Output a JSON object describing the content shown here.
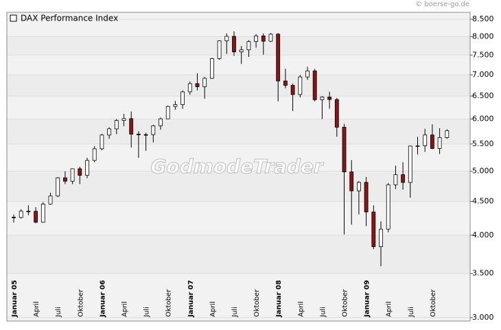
{
  "source": "© boerse-go.de",
  "logo": "GodmodeTrader",
  "chart_data": {
    "type": "candlestick",
    "log_scale": true,
    "grid": true,
    "up_color": "#ffffff",
    "down_color": "#8b1414",
    "ylim": [
      3000,
      8500
    ],
    "yticks": [
      {
        "value": 3000,
        "label": "3.000"
      },
      {
        "value": 3500,
        "label": "3.500"
      },
      {
        "value": 4000,
        "label": "4.000"
      },
      {
        "value": 4500,
        "label": "4.500"
      },
      {
        "value": 5000,
        "label": "5.000"
      },
      {
        "value": 5500,
        "label": "5.500"
      },
      {
        "value": 6000,
        "label": "6.000"
      },
      {
        "value": 6500,
        "label": "6.500"
      },
      {
        "value": 7000,
        "label": "7.000"
      },
      {
        "value": 7500,
        "label": "7.500"
      },
      {
        "value": 8000,
        "label": "8.000"
      },
      {
        "value": 8500,
        "label": "8.500"
      }
    ],
    "categories": [
      "Januar 05",
      null,
      null,
      "April",
      null,
      null,
      "Juli",
      null,
      null,
      "Oktober",
      null,
      null,
      "Januar 06",
      null,
      null,
      "April",
      null,
      null,
      "Juli",
      null,
      null,
      "Oktober",
      null,
      null,
      "Januar 07",
      null,
      null,
      "April",
      null,
      null,
      "Juli",
      null,
      null,
      "Oktober",
      null,
      null,
      "Januar 08",
      null,
      null,
      "April",
      null,
      null,
      "Juli",
      null,
      null,
      "Oktober",
      null,
      null,
      "Januar 09",
      null,
      null,
      "April",
      null,
      null,
      "Juli",
      null,
      null,
      "Oktober",
      null,
      null
    ],
    "series": [
      {
        "name": "DAX Performance Index",
        "open": [
          4260,
          4255,
          4350,
          4349,
          4185,
          4460,
          4586,
          4887,
          4829,
          5044,
          4929,
          5193,
          5408,
          5674,
          5797,
          5970,
          6009,
          5692,
          5683,
          5682,
          5860,
          6004,
          6269,
          6309,
          6597,
          6789,
          6715,
          6917,
          7409,
          7883,
          8007,
          7584,
          7638,
          7862,
          8019,
          7871,
          8067,
          6852,
          6748,
          6535,
          6949,
          7097,
          6418,
          6480,
          6422,
          5831,
          4988,
          4670,
          4810,
          4338,
          3843,
          4085,
          4770,
          4941,
          4809,
          5460,
          5465,
          5675,
          5414,
          5625
        ],
        "high": [
          4300,
          4380,
          4440,
          4410,
          4490,
          4640,
          4900,
          5000,
          5050,
          5080,
          5240,
          5460,
          5700,
          5830,
          6000,
          6110,
          6160,
          5750,
          5720,
          5880,
          6030,
          6290,
          6390,
          6630,
          6840,
          7040,
          6950,
          7430,
          7900,
          8090,
          8150,
          7740,
          7900,
          8070,
          8090,
          8100,
          8100,
          7150,
          6790,
          7000,
          7200,
          7150,
          6500,
          6600,
          6460,
          5900,
          5200,
          4830,
          4900,
          4440,
          4200,
          4800,
          5100,
          5160,
          5470,
          5640,
          5800,
          5890,
          5810,
          5790
        ],
        "low": [
          4180,
          4240,
          4290,
          4170,
          4180,
          4450,
          4570,
          4780,
          4780,
          4780,
          4880,
          5160,
          5380,
          5600,
          5690,
          5850,
          5430,
          5240,
          5370,
          5530,
          5780,
          6000,
          6200,
          6220,
          6530,
          6630,
          6440,
          6900,
          7380,
          7530,
          7480,
          7270,
          7450,
          7700,
          7510,
          7850,
          6380,
          6680,
          6170,
          6470,
          6880,
          6380,
          6000,
          6220,
          5640,
          4010,
          4150,
          4300,
          4130,
          3810,
          3590,
          4040,
          4700,
          4690,
          4560,
          5300,
          5350,
          5400,
          5310,
          5600
        ],
        "close": [
          4255,
          4350,
          4349,
          4185,
          4460,
          4586,
          4887,
          4829,
          5044,
          4929,
          5193,
          5408,
          5674,
          5797,
          5970,
          6009,
          5692,
          5683,
          5682,
          5860,
          6004,
          6269,
          6309,
          6597,
          6789,
          6715,
          6917,
          7409,
          7883,
          8007,
          7584,
          7638,
          7862,
          8019,
          7871,
          8067,
          6852,
          6748,
          6535,
          6949,
          7097,
          6418,
          6480,
          6422,
          5831,
          4988,
          4670,
          4810,
          4338,
          3843,
          4085,
          4770,
          4941,
          4809,
          5460,
          5465,
          5675,
          5414,
          5625,
          5760
        ]
      }
    ]
  }
}
